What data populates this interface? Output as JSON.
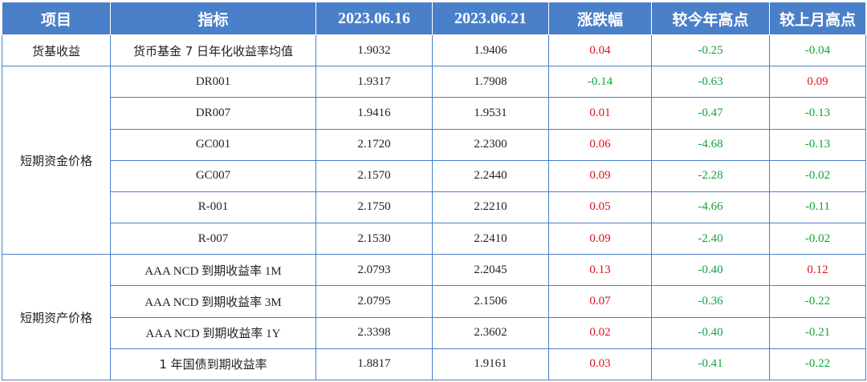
{
  "headers": [
    "项目",
    "指标",
    "2023.06.16",
    "2023.06.21",
    "涨跌幅",
    "较今年高点",
    "较上月高点"
  ],
  "groups": [
    {
      "category": "货基收益",
      "rows": [
        {
          "indicator": "货币基金 7 日年化收益率均值",
          "v1": "1.9032",
          "v2": "1.9406",
          "chg": "0.04",
          "vs_year_high": "-0.25",
          "vs_month_high": "-0.04"
        }
      ]
    },
    {
      "category": "短期资金价格",
      "rows": [
        {
          "indicator": "DR001",
          "v1": "1.9317",
          "v2": "1.7908",
          "chg": "-0.14",
          "vs_year_high": "-0.63",
          "vs_month_high": "0.09"
        },
        {
          "indicator": "DR007",
          "v1": "1.9416",
          "v2": "1.9531",
          "chg": "0.01",
          "vs_year_high": "-0.47",
          "vs_month_high": "-0.13"
        },
        {
          "indicator": "GC001",
          "v1": "2.1720",
          "v2": "2.2300",
          "chg": "0.06",
          "vs_year_high": "-4.68",
          "vs_month_high": "-0.13"
        },
        {
          "indicator": "GC007",
          "v1": "2.1570",
          "v2": "2.2440",
          "chg": "0.09",
          "vs_year_high": "-2.28",
          "vs_month_high": "-0.02"
        },
        {
          "indicator": "R-001",
          "v1": "2.1750",
          "v2": "2.2210",
          "chg": "0.05",
          "vs_year_high": "-4.66",
          "vs_month_high": "-0.11"
        },
        {
          "indicator": "R-007",
          "v1": "2.1530",
          "v2": "2.2410",
          "chg": "0.09",
          "vs_year_high": "-2.40",
          "vs_month_high": "-0.02"
        }
      ]
    },
    {
      "category": "短期资产价格",
      "rows": [
        {
          "indicator": "AAA NCD 到期收益率 1M",
          "v1": "2.0793",
          "v2": "2.2045",
          "chg": "0.13",
          "vs_year_high": "-0.40",
          "vs_month_high": "0.12"
        },
        {
          "indicator": "AAA NCD 到期收益率 3M",
          "v1": "2.0795",
          "v2": "2.1506",
          "chg": "0.07",
          "vs_year_high": "-0.36",
          "vs_month_high": "-0.22"
        },
        {
          "indicator": "AAA NCD 到期收益率 1Y",
          "v1": "2.3398",
          "v2": "2.3602",
          "chg": "0.02",
          "vs_year_high": "-0.40",
          "vs_month_high": "-0.21"
        },
        {
          "indicator": "1 年国债到期收益率",
          "v1": "1.8817",
          "v2": "1.9161",
          "chg": "0.03",
          "vs_year_high": "-0.41",
          "vs_month_high": "-0.22"
        }
      ]
    }
  ],
  "colors": {
    "header_bg": "#4a7fc9",
    "border": "#4a7fc9",
    "positive": "#e0101b",
    "negative": "#12a33c"
  }
}
